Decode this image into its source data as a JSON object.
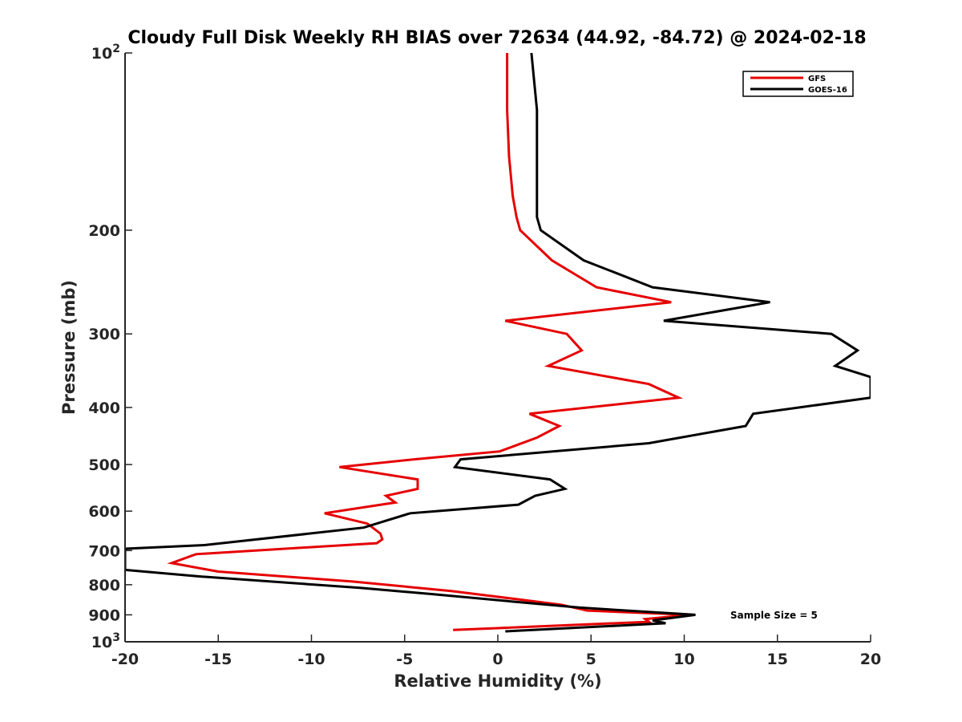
{
  "chart_data": {
    "type": "line",
    "title": "Cloudy Full Disk Weekly RH BIAS over 72634 (44.92, -84.72) @ 2024-02-18",
    "xlabel": "Relative Humidity (%)",
    "ylabel": "Pressure (mb)",
    "xlim": [
      -20,
      20
    ],
    "ylim": [
      100,
      1000
    ],
    "y_scale": "log",
    "y_reversed": true,
    "xticks": [
      "-20",
      "-15",
      "-10",
      "-5",
      "0",
      "5",
      "10",
      "15",
      "20"
    ],
    "yticks": [
      {
        "value": 100,
        "base": "10",
        "exp": "2"
      },
      {
        "value": 200,
        "label": "200"
      },
      {
        "value": 300,
        "label": "300"
      },
      {
        "value": 400,
        "label": "400"
      },
      {
        "value": 500,
        "label": "500"
      },
      {
        "value": 600,
        "label": "600"
      },
      {
        "value": 700,
        "label": "700"
      },
      {
        "value": 800,
        "label": "800"
      },
      {
        "value": 900,
        "label": "900"
      },
      {
        "value": 1000,
        "base": "10",
        "exp": "3"
      }
    ],
    "legend_position": "top-right",
    "annotation": "Sample Size = 5",
    "series": [
      {
        "name": "GFS",
        "color": "#e60000",
        "points": [
          [
            0.5,
            100
          ],
          [
            0.5,
            125
          ],
          [
            0.6,
            150
          ],
          [
            0.8,
            175
          ],
          [
            1.0,
            190
          ],
          [
            1.2,
            200
          ],
          [
            2.9,
            225
          ],
          [
            5.3,
            250
          ],
          [
            9.3,
            265
          ],
          [
            0.4,
            285
          ],
          [
            3.7,
            300
          ],
          [
            4.5,
            320
          ],
          [
            2.7,
            340
          ],
          [
            8.1,
            365
          ],
          [
            9.7,
            385
          ],
          [
            1.7,
            410
          ],
          [
            3.3,
            430
          ],
          [
            2.1,
            450
          ],
          [
            0.1,
            475
          ],
          [
            -4.5,
            490
          ],
          [
            -8.5,
            505
          ],
          [
            -4.3,
            530
          ],
          [
            -4.3,
            550
          ],
          [
            -6.0,
            565
          ],
          [
            -5.5,
            580
          ],
          [
            -9.3,
            605
          ],
          [
            -7.0,
            630
          ],
          [
            -6.3,
            655
          ],
          [
            -6.2,
            670
          ],
          [
            -6.5,
            680
          ],
          [
            -9.8,
            690
          ],
          [
            -16.2,
            710
          ],
          [
            -17.5,
            735
          ],
          [
            -15.0,
            760
          ],
          [
            -7.8,
            790
          ],
          [
            -2.5,
            820
          ],
          [
            3.4,
            865
          ],
          [
            4.8,
            885
          ],
          [
            10.3,
            900
          ],
          [
            7.9,
            915
          ],
          [
            8.1,
            925
          ],
          [
            -2.4,
            955
          ]
        ]
      },
      {
        "name": "GOES-16",
        "color": "#000000",
        "points": [
          [
            1.8,
            100
          ],
          [
            2.1,
            125
          ],
          [
            2.1,
            150
          ],
          [
            2.1,
            175
          ],
          [
            2.1,
            190
          ],
          [
            2.3,
            200
          ],
          [
            4.6,
            225
          ],
          [
            8.3,
            250
          ],
          [
            14.6,
            265
          ],
          [
            8.9,
            285
          ],
          [
            17.9,
            300
          ],
          [
            19.3,
            320
          ],
          [
            18.1,
            340
          ],
          [
            20.0,
            355
          ],
          [
            20.0,
            385
          ],
          [
            13.7,
            410
          ],
          [
            13.3,
            430
          ],
          [
            8.1,
            460
          ],
          [
            -2.0,
            490
          ],
          [
            -2.3,
            505
          ],
          [
            2.8,
            530
          ],
          [
            3.6,
            550
          ],
          [
            2.0,
            565
          ],
          [
            1.1,
            585
          ],
          [
            -4.7,
            605
          ],
          [
            -7.2,
            640
          ],
          [
            -15.7,
            685
          ],
          [
            -20.0,
            695
          ],
          [
            -20.0,
            755
          ],
          [
            -15.9,
            775
          ],
          [
            -7.4,
            810
          ],
          [
            -3.5,
            830
          ],
          [
            0.9,
            855
          ],
          [
            4.4,
            875
          ],
          [
            10.6,
            900
          ],
          [
            8.3,
            920
          ],
          [
            9.0,
            930
          ],
          [
            0.4,
            960
          ]
        ]
      }
    ]
  }
}
